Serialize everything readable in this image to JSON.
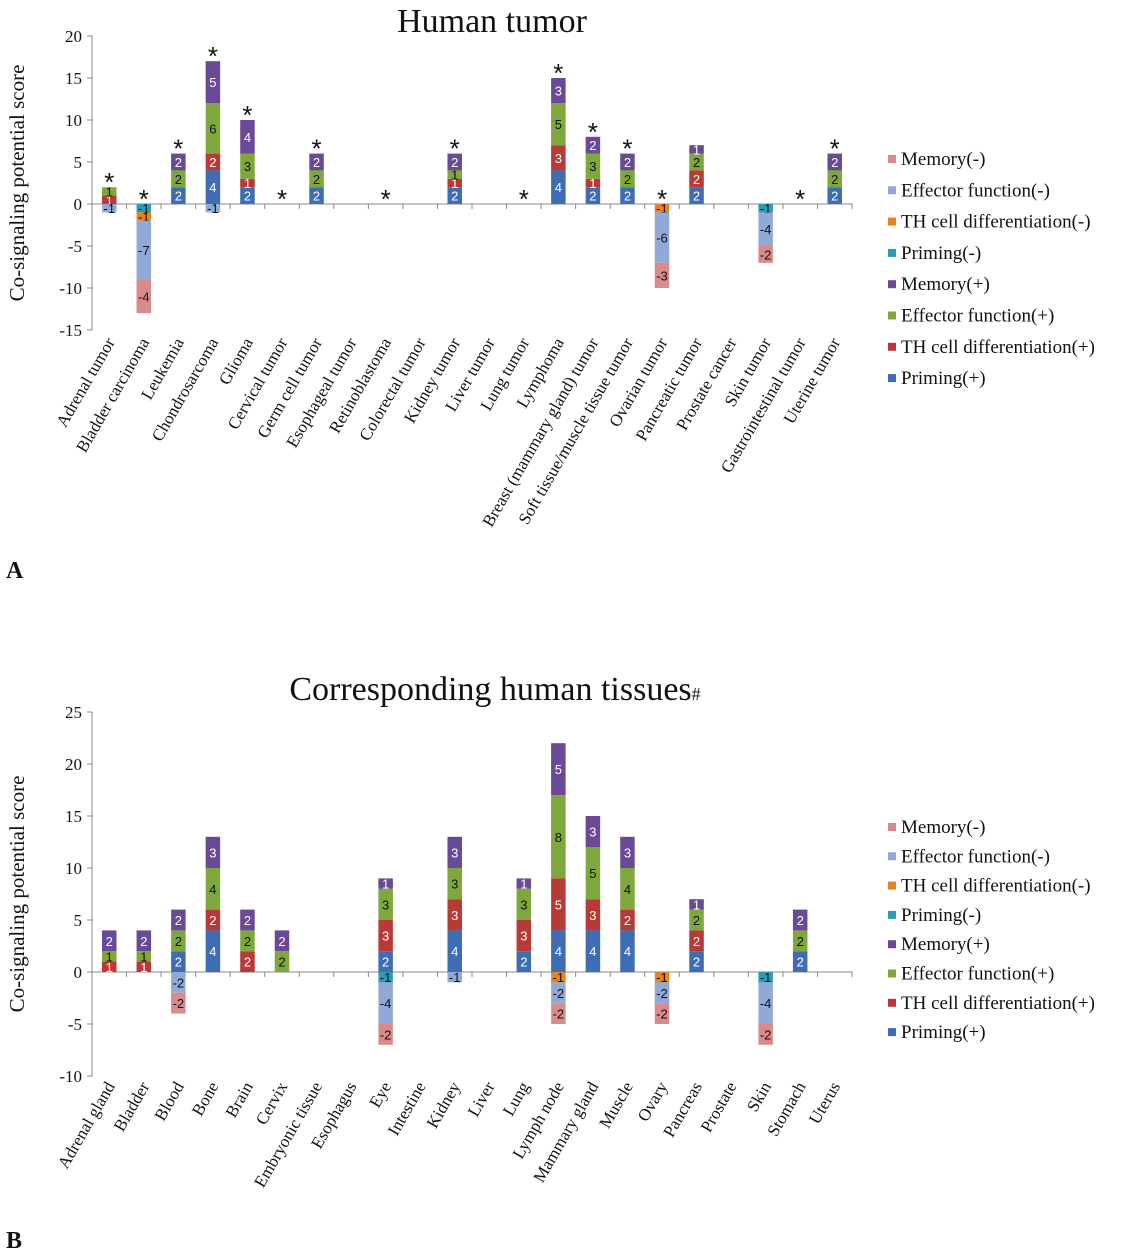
{
  "colors": {
    "Priming(+)": "#3E6DB3",
    "TH cell differentiation(+)": "#B83A36",
    "Effector function(+)": "#7FA83C",
    "Memory(+)": "#6A4996",
    "Priming(-)": "#2B9DB3",
    "TH cell differentiation(-)": "#E8831F",
    "Effector function(-)": "#91A9D6",
    "Memory(-)": "#D98B8B"
  },
  "chart_data": [
    {
      "type": "bar",
      "stacked": true,
      "panel": "A",
      "title": "Human tumor",
      "title_suffix": "",
      "ylabel": "Co-signaling  potential  score",
      "ylim": [
        -15,
        20
      ],
      "yticks": [
        -15,
        -10,
        -5,
        0,
        5,
        10,
        15,
        20
      ],
      "legend": [
        "Memory(-)",
        "Effector function(-)",
        "TH cell differentiation(-)",
        "Priming(-)",
        "Memory(+)",
        "Effector function(+)",
        "TH cell differentiation(+)",
        "Priming(+)"
      ],
      "legend_position": "right",
      "categories": [
        "Adrenal tumor",
        "Bladder carcinoma",
        "Leukemia",
        "Chondrosarcoma",
        "Glioma",
        "Cervical tumor",
        "Germ cell tumor",
        "Esophageal tumor",
        "Retinoblastoma",
        "Colorectal tumor",
        "Kidney tumor",
        "Liver tumor",
        "Lung tumor",
        "Lymphoma",
        "Breast (mammary gland) tumor",
        "Soft tissue/muscle tissue tumor",
        "Ovarian tumor",
        "Pancreatic tumor",
        "Prostate cancer",
        "Skin tumor",
        "Gastrointestinal tumor",
        "Uterine tumor"
      ],
      "significant": [
        true,
        true,
        true,
        true,
        true,
        true,
        true,
        false,
        true,
        false,
        true,
        false,
        true,
        true,
        true,
        true,
        true,
        false,
        false,
        false,
        true,
        true
      ],
      "series": [
        {
          "name": "Priming(+)",
          "values": [
            0,
            0,
            2,
            4,
            2,
            0,
            2,
            0,
            0,
            0,
            2,
            0,
            0,
            4,
            2,
            2,
            0,
            2,
            0,
            0,
            0,
            2
          ]
        },
        {
          "name": "TH cell differentiation(+)",
          "values": [
            1,
            0,
            0,
            2,
            1,
            0,
            0,
            0,
            0,
            0,
            1,
            0,
            0,
            3,
            1,
            0,
            0,
            2,
            0,
            0,
            0,
            0
          ]
        },
        {
          "name": "Effector function(+)",
          "values": [
            1,
            0,
            2,
            6,
            3,
            0,
            2,
            0,
            0,
            0,
            1,
            0,
            0,
            5,
            3,
            2,
            0,
            2,
            0,
            0,
            0,
            2
          ]
        },
        {
          "name": "Memory(+)",
          "values": [
            0,
            0,
            2,
            5,
            4,
            0,
            2,
            0,
            0,
            0,
            2,
            0,
            0,
            3,
            2,
            2,
            0,
            1,
            0,
            0,
            0,
            2
          ]
        },
        {
          "name": "Priming(-)",
          "values": [
            0,
            -1,
            0,
            0,
            0,
            0,
            0,
            0,
            0,
            0,
            0,
            0,
            0,
            0,
            0,
            0,
            0,
            0,
            0,
            -1,
            0,
            0
          ]
        },
        {
          "name": "TH cell differentiation(-)",
          "values": [
            0,
            -1,
            0,
            0,
            0,
            0,
            0,
            0,
            0,
            0,
            0,
            0,
            0,
            0,
            0,
            0,
            -1,
            0,
            0,
            0,
            0,
            0
          ]
        },
        {
          "name": "Effector function(-)",
          "values": [
            -1,
            -7,
            0,
            -1,
            0,
            0,
            0,
            0,
            0,
            0,
            0,
            0,
            0,
            0,
            0,
            0,
            -6,
            0,
            0,
            -4,
            0,
            0
          ]
        },
        {
          "name": "Memory(-)",
          "values": [
            0,
            -4,
            0,
            0,
            0,
            0,
            0,
            0,
            0,
            0,
            0,
            0,
            0,
            0,
            0,
            0,
            -3,
            0,
            0,
            -2,
            0,
            0
          ]
        }
      ]
    },
    {
      "type": "bar",
      "stacked": true,
      "panel": "B",
      "title": "Corresponding human tissues",
      "title_suffix": "#",
      "ylabel": "Co-signaling  potential  score",
      "ylim": [
        -10,
        25
      ],
      "yticks": [
        -10,
        -5,
        0,
        5,
        10,
        15,
        20,
        25
      ],
      "legend": [
        "Memory(-)",
        "Effector function(-)",
        "TH cell differentiation(-)",
        "Priming(-)",
        "Memory(+)",
        "Effector function(+)",
        "TH cell differentiation(+)",
        "Priming(+)"
      ],
      "legend_position": "right",
      "categories": [
        "Adrenal gland",
        "Bladder",
        "Blood",
        "Bone",
        "Brain",
        "Cervix",
        "Embryonic tissue",
        "Esophagus",
        "Eye",
        "Intestine",
        "Kidney",
        "Liver",
        "Lung",
        "Lymph node",
        "Mammary gland",
        "Muscle",
        "Ovary",
        "Pancreas",
        "Prostate",
        "Skin",
        "Stomach",
        "Uterus"
      ],
      "significant": [
        false,
        false,
        false,
        false,
        false,
        false,
        false,
        false,
        false,
        false,
        false,
        false,
        false,
        false,
        false,
        false,
        false,
        false,
        false,
        false,
        false,
        false
      ],
      "series": [
        {
          "name": "Priming(+)",
          "values": [
            0,
            0,
            2,
            4,
            0,
            0,
            0,
            0,
            2,
            0,
            4,
            0,
            2,
            4,
            4,
            4,
            0,
            2,
            0,
            0,
            2,
            0
          ]
        },
        {
          "name": "TH cell differentiation(+)",
          "values": [
            1,
            1,
            0,
            2,
            2,
            0,
            0,
            0,
            3,
            0,
            3,
            0,
            3,
            5,
            3,
            2,
            0,
            2,
            0,
            0,
            0,
            0
          ]
        },
        {
          "name": "Effector function(+)",
          "values": [
            1,
            1,
            2,
            4,
            2,
            2,
            0,
            0,
            3,
            0,
            3,
            0,
            3,
            8,
            5,
            4,
            0,
            2,
            0,
            0,
            2,
            0
          ]
        },
        {
          "name": "Memory(+)",
          "values": [
            2,
            2,
            2,
            3,
            2,
            2,
            0,
            0,
            1,
            0,
            3,
            0,
            1,
            5,
            3,
            3,
            0,
            1,
            0,
            0,
            2,
            0
          ]
        },
        {
          "name": "Priming(-)",
          "values": [
            0,
            0,
            0,
            0,
            0,
            0,
            0,
            0,
            -1,
            0,
            0,
            0,
            0,
            0,
            0,
            0,
            0,
            0,
            0,
            -1,
            0,
            0
          ]
        },
        {
          "name": "TH cell differentiation(-)",
          "values": [
            0,
            0,
            0,
            0,
            0,
            0,
            0,
            0,
            0,
            0,
            0,
            0,
            0,
            -1,
            0,
            0,
            -1,
            0,
            0,
            0,
            0,
            0
          ]
        },
        {
          "name": "Effector function(-)",
          "values": [
            0,
            0,
            -2,
            0,
            0,
            0,
            0,
            0,
            -4,
            0,
            -1,
            0,
            0,
            -2,
            0,
            0,
            -2,
            0,
            0,
            -4,
            0,
            0
          ]
        },
        {
          "name": "Memory(-)",
          "values": [
            0,
            0,
            -2,
            0,
            0,
            0,
            0,
            0,
            -2,
            0,
            0,
            0,
            0,
            -2,
            0,
            0,
            -2,
            0,
            0,
            -2,
            0,
            0
          ]
        }
      ]
    }
  ]
}
